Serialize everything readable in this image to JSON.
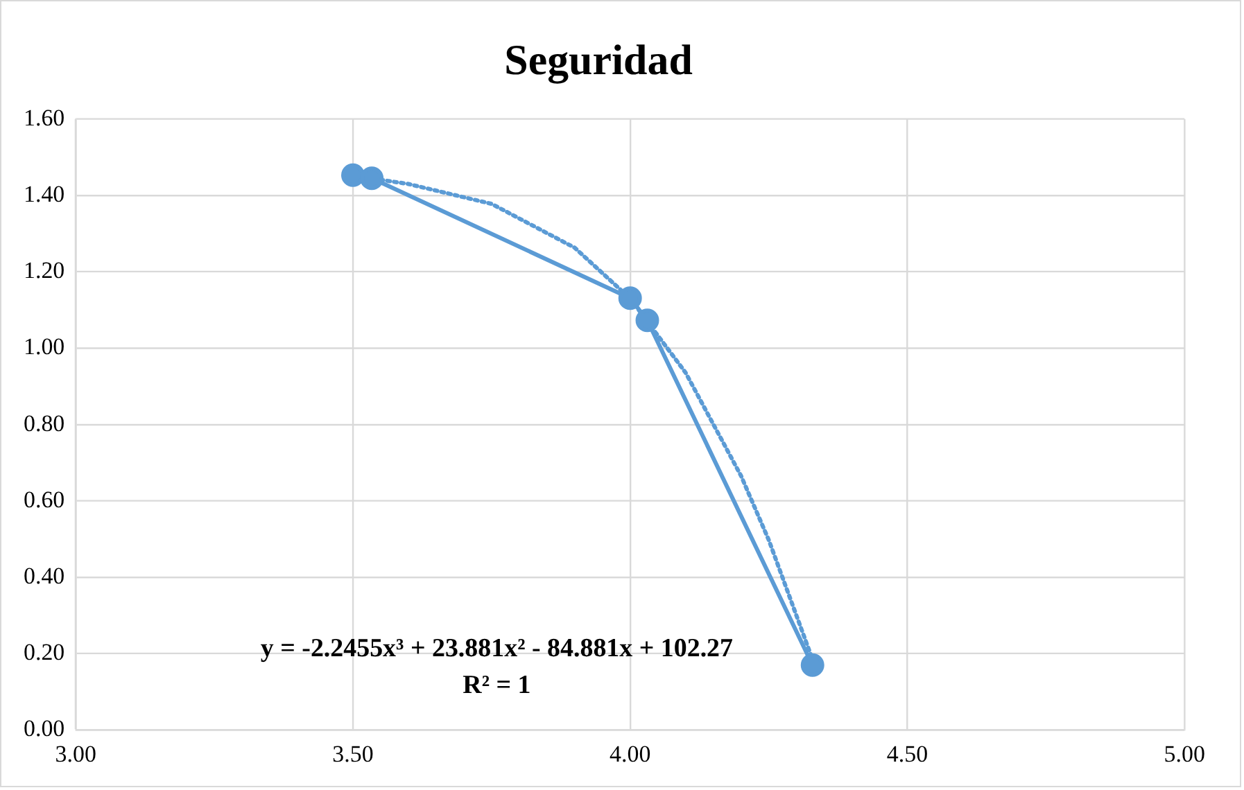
{
  "chart_data": {
    "type": "line",
    "title": "Seguridad",
    "series": [
      {
        "color": "#5b9bd5",
        "x": [
          3.5,
          3.534,
          4.0,
          4.031,
          4.329
        ],
        "values": [
          1.453,
          1.445,
          1.131,
          1.073,
          0.17
        ],
        "marker": "circle",
        "line_style": "solid"
      },
      {
        "color": "#5b9bd5",
        "x": [
          3.5,
          3.6,
          3.75,
          3.9,
          4.0,
          4.1,
          4.2,
          4.25,
          4.33
        ],
        "values": [
          1.452,
          1.43,
          1.378,
          1.263,
          1.13,
          0.936,
          0.666,
          0.498,
          0.181
        ],
        "marker": "none",
        "line_style": "dotted"
      }
    ],
    "xlim": [
      3,
      5
    ],
    "ylim": [
      0,
      1.6
    ],
    "xticks": [
      {
        "value": 3,
        "label": "3.00"
      },
      {
        "value": 3.5,
        "label": "3.50"
      },
      {
        "value": 4,
        "label": "4.00"
      },
      {
        "value": 4.5,
        "label": "4.50"
      },
      {
        "value": 5,
        "label": "5.00"
      }
    ],
    "yticks": [
      {
        "value": 0,
        "label": "0.00"
      },
      {
        "value": 0.2,
        "label": "0.20"
      },
      {
        "value": 0.4,
        "label": "0.40"
      },
      {
        "value": 0.6,
        "label": "0.60"
      },
      {
        "value": 0.8,
        "label": "0.80"
      },
      {
        "value": 1,
        "label": "1.00"
      },
      {
        "value": 1.2,
        "label": "1.20"
      },
      {
        "value": 1.4,
        "label": "1.40"
      },
      {
        "value": 1.6,
        "label": "1.60"
      }
    ],
    "grid": true,
    "legend": false,
    "annotations": [
      "y = -2.2455x³ + 23.881x² - 84.881x + 102.27",
      "R² = 1"
    ]
  }
}
